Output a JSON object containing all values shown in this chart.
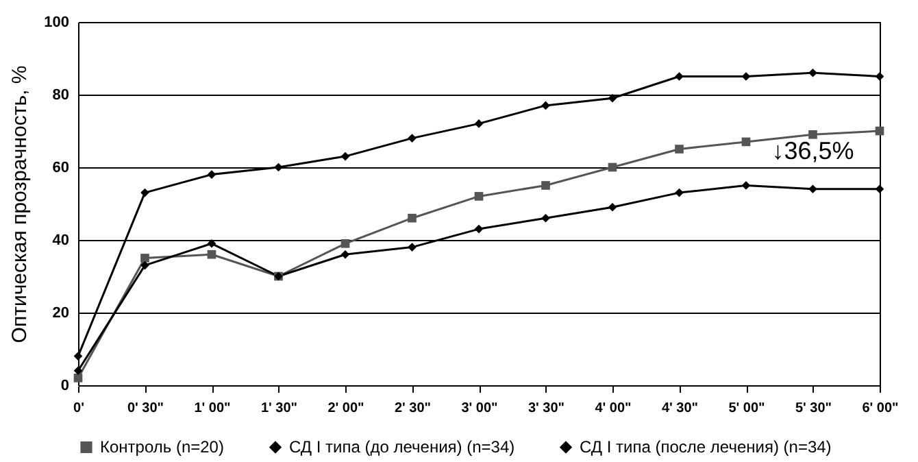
{
  "chart_data": {
    "type": "line",
    "ylabel": "Оптическая прозрачность, %",
    "categories": [
      "0'",
      "0' 30\"",
      "1' 00\"",
      "1' 30\"",
      "2' 00\"",
      "2' 30\"",
      "3' 00\"",
      "3' 30\"",
      "4' 00\"",
      "4' 30\"",
      "5' 00\"",
      "5' 30\"",
      "6' 00\""
    ],
    "series": [
      {
        "name": "Контроль (n=20)",
        "color": "#555555",
        "marker": "square",
        "values": [
          2,
          35,
          36,
          30,
          39,
          46,
          52,
          55,
          60,
          65,
          67,
          69,
          70
        ]
      },
      {
        "name": "СД I типа (до лечения) (n=34)",
        "color": "#000000",
        "marker": "diamond",
        "values": [
          8,
          53,
          58,
          60,
          63,
          68,
          72,
          77,
          79,
          85,
          85,
          86,
          85
        ]
      },
      {
        "name": "СД I типа (после лечения) (n=34)",
        "color": "#000000",
        "marker": "diamond",
        "values": [
          4,
          33,
          39,
          30,
          36,
          38,
          43,
          46,
          49,
          53,
          55,
          54,
          54
        ]
      }
    ],
    "ylim": [
      0,
      100
    ],
    "yticks": [
      0,
      20,
      40,
      60,
      80,
      100
    ],
    "grid": "y",
    "legend": "bottom",
    "annotations": [
      "↓36,5%"
    ]
  }
}
